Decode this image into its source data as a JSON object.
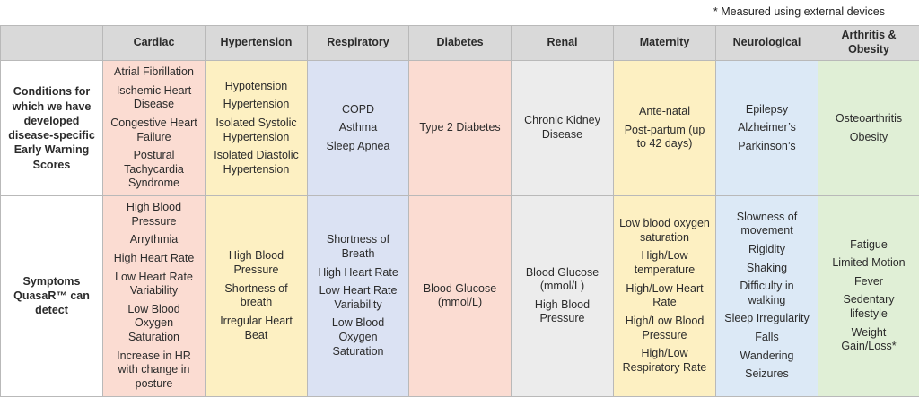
{
  "note": "* Measured using external devices",
  "columns": [
    "Cardiac",
    "Hypertension",
    "Respiratory",
    "Diabetes",
    "Renal",
    "Maternity",
    "Neurological",
    "Arthritis & Obesity"
  ],
  "rows": [
    {
      "label": "Conditions for which we have developed disease-specific Early Warning Scores",
      "cells": [
        [
          "Atrial Fibrillation",
          "Ischemic Heart Disease",
          "Congestive Heart Failure",
          "Postural Tachycardia Syndrome"
        ],
        [
          "Hypotension",
          "Hypertension",
          "Isolated Systolic Hypertension",
          "Isolated Diastolic Hypertension"
        ],
        [
          "COPD",
          "Asthma",
          "Sleep Apnea"
        ],
        [
          "Type 2 Diabetes"
        ],
        [
          "Chronic Kidney Disease"
        ],
        [
          "Ante-natal",
          "Post-partum (up to 42 days)"
        ],
        [
          "Epilepsy",
          "Alzheimer’s",
          "Parkinson’s"
        ],
        [
          "Osteoarthritis",
          "Obesity"
        ]
      ]
    },
    {
      "label": "Symptoms QuasaR™ can detect",
      "cells": [
        [
          "High Blood Pressure",
          "Arrythmia",
          "High Heart Rate",
          "Low Heart Rate Variability",
          "Low Blood Oxygen Saturation",
          "Increase in HR with change in posture"
        ],
        [
          "High Blood Pressure",
          "Shortness of breath",
          "Irregular Heart Beat"
        ],
        [
          "Shortness of Breath",
          "High Heart Rate",
          "Low Heart Rate Variability",
          "Low Blood Oxygen Saturation"
        ],
        [
          "Blood Glucose (mmol/L)"
        ],
        [
          "Blood Glucose (mmol/L)",
          "High Blood Pressure"
        ],
        [
          "Low blood oxygen saturation",
          "High/Low temperature",
          "High/Low Heart Rate",
          "High/Low Blood Pressure",
          "High/Low Respiratory Rate"
        ],
        [
          "Slowness of movement",
          "Rigidity",
          "Shaking",
          "Difficulty in walking",
          "Sleep Irregularity",
          "Falls",
          "Wandering",
          "Seizures"
        ],
        [
          "Fatigue",
          "Limited Motion",
          "Fever",
          "Sedentary lifestyle",
          "Weight Gain/Loss*"
        ]
      ]
    }
  ]
}
